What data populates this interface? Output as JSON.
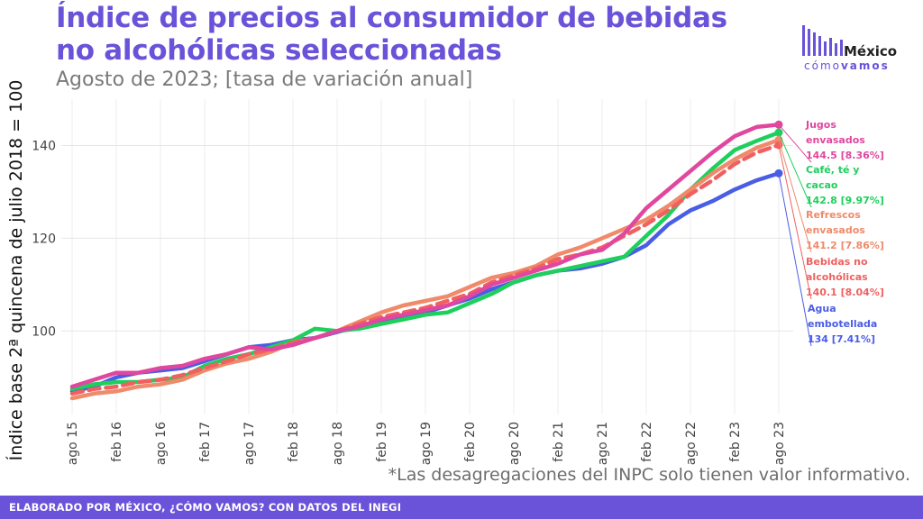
{
  "title": "Índice de precios al consumidor de bebidas no alcohólicas seleccionadas",
  "subtitle": "Agosto de 2023; [tasa de variación anual]",
  "logo": {
    "word": "México",
    "sub_a": "cómo",
    "sub_b": "vamos"
  },
  "note": "*Las desagregaciones del INPC solo tienen valor informativo.",
  "footer": "ELABORADO POR MÉXICO, ¿CÓMO VAMOS? CON DATOS DEL INEGI",
  "colors": {
    "jugos": "#e0479e",
    "cafe": "#1fcf5c",
    "refrescos": "#ef8a6a",
    "bebidas": "#f06060",
    "agua": "#4a5de6"
  },
  "chart_data": {
    "type": "line",
    "ylabel": "Índice base 2ª quincena de julio 2018 = 100",
    "ylim": [
      82,
      150
    ],
    "yticks": [
      100,
      120,
      140
    ],
    "x_months": [
      0,
      98
    ],
    "xticks": [
      {
        "label": "ago 15",
        "m": 0
      },
      {
        "label": "feb 16",
        "m": 6
      },
      {
        "label": "ago 16",
        "m": 12
      },
      {
        "label": "feb 17",
        "m": 18
      },
      {
        "label": "ago 17",
        "m": 24
      },
      {
        "label": "feb 18",
        "m": 30
      },
      {
        "label": "ago 18",
        "m": 36
      },
      {
        "label": "feb 19",
        "m": 42
      },
      {
        "label": "ago 19",
        "m": 48
      },
      {
        "label": "feb 20",
        "m": 54
      },
      {
        "label": "ago 20",
        "m": 60
      },
      {
        "label": "feb 21",
        "m": 66
      },
      {
        "label": "ago 21",
        "m": 72
      },
      {
        "label": "feb 22",
        "m": 78
      },
      {
        "label": "ago 22",
        "m": 84
      },
      {
        "label": "feb 23",
        "m": 90
      },
      {
        "label": "ago 23",
        "m": 96
      }
    ],
    "series": [
      {
        "key": "agua",
        "name": "Agua embotellada",
        "label_lines": [
          "Agua",
          "embotellada",
          "134 [7.41%]"
        ],
        "dashed": false,
        "points": [
          [
            0,
            87
          ],
          [
            3,
            88
          ],
          [
            6,
            90
          ],
          [
            9,
            91
          ],
          [
            12,
            91.5
          ],
          [
            15,
            92
          ],
          [
            18,
            93.5
          ],
          [
            21,
            95
          ],
          [
            24,
            96.5
          ],
          [
            27,
            97
          ],
          [
            30,
            98
          ],
          [
            33,
            98.5
          ],
          [
            36,
            99.8
          ],
          [
            39,
            101
          ],
          [
            42,
            102
          ],
          [
            45,
            103
          ],
          [
            48,
            104
          ],
          [
            51,
            105.5
          ],
          [
            54,
            107
          ],
          [
            57,
            109
          ],
          [
            60,
            110.5
          ],
          [
            63,
            112
          ],
          [
            66,
            113
          ],
          [
            69,
            113.5
          ],
          [
            72,
            114.5
          ],
          [
            75,
            116
          ],
          [
            78,
            118.5
          ],
          [
            81,
            123
          ],
          [
            84,
            126
          ],
          [
            87,
            128
          ],
          [
            90,
            130.5
          ],
          [
            93,
            132.5
          ],
          [
            96,
            134
          ]
        ]
      },
      {
        "key": "cafe",
        "name": "Café, té y cacao",
        "label_lines": [
          "Café, té y",
          "cacao",
          "142.8 [9.97%]"
        ],
        "dashed": false,
        "points": [
          [
            0,
            87.5
          ],
          [
            3,
            88.5
          ],
          [
            6,
            89
          ],
          [
            9,
            89
          ],
          [
            12,
            89.5
          ],
          [
            15,
            90
          ],
          [
            18,
            92.5
          ],
          [
            21,
            94
          ],
          [
            24,
            95
          ],
          [
            27,
            96.5
          ],
          [
            30,
            98
          ],
          [
            33,
            100.5
          ],
          [
            36,
            100
          ],
          [
            39,
            100.5
          ],
          [
            42,
            101.5
          ],
          [
            45,
            102.5
          ],
          [
            48,
            103.5
          ],
          [
            51,
            104
          ],
          [
            54,
            106
          ],
          [
            57,
            108
          ],
          [
            60,
            110.5
          ],
          [
            63,
            112
          ],
          [
            66,
            113
          ],
          [
            69,
            114
          ],
          [
            72,
            115
          ],
          [
            75,
            116
          ],
          [
            78,
            120.5
          ],
          [
            81,
            125
          ],
          [
            84,
            130.5
          ],
          [
            87,
            135
          ],
          [
            90,
            139
          ],
          [
            93,
            141
          ],
          [
            96,
            142.8
          ]
        ]
      },
      {
        "key": "refrescos",
        "name": "Refrescos envasados",
        "label_lines": [
          "Refrescos",
          "envasados",
          "141.2 [7.86%]"
        ],
        "dashed": false,
        "points": [
          [
            0,
            85.5
          ],
          [
            3,
            86.5
          ],
          [
            6,
            87
          ],
          [
            9,
            88
          ],
          [
            12,
            88.5
          ],
          [
            15,
            89.5
          ],
          [
            18,
            91.5
          ],
          [
            21,
            93
          ],
          [
            24,
            94
          ],
          [
            27,
            95.5
          ],
          [
            30,
            97.5
          ],
          [
            33,
            98.5
          ],
          [
            36,
            100
          ],
          [
            39,
            102
          ],
          [
            42,
            104
          ],
          [
            45,
            105.5
          ],
          [
            48,
            106.5
          ],
          [
            51,
            107.5
          ],
          [
            54,
            109.5
          ],
          [
            57,
            111.5
          ],
          [
            60,
            112.5
          ],
          [
            63,
            114
          ],
          [
            66,
            116.5
          ],
          [
            69,
            118
          ],
          [
            72,
            120
          ],
          [
            75,
            122
          ],
          [
            78,
            124
          ],
          [
            81,
            127
          ],
          [
            84,
            130.5
          ],
          [
            87,
            134
          ],
          [
            90,
            137
          ],
          [
            93,
            139.5
          ],
          [
            96,
            141.2
          ]
        ]
      },
      {
        "key": "bebidas",
        "name": "Bebidas no alcohólicas",
        "label_lines": [
          "Bebidas no",
          "alcohólicas",
          "140.1 [8.04%]"
        ],
        "dashed": true,
        "points": [
          [
            0,
            86.5
          ],
          [
            3,
            87.5
          ],
          [
            6,
            88
          ],
          [
            9,
            89
          ],
          [
            12,
            89.5
          ],
          [
            15,
            90.5
          ],
          [
            18,
            92
          ],
          [
            21,
            93.5
          ],
          [
            24,
            95
          ],
          [
            27,
            96
          ],
          [
            30,
            97.5
          ],
          [
            33,
            98.5
          ],
          [
            36,
            100
          ],
          [
            39,
            101.5
          ],
          [
            42,
            103
          ],
          [
            45,
            104
          ],
          [
            48,
            105
          ],
          [
            51,
            106.5
          ],
          [
            54,
            108
          ],
          [
            57,
            110.5
          ],
          [
            60,
            112
          ],
          [
            63,
            113.5
          ],
          [
            66,
            115.5
          ],
          [
            69,
            116.5
          ],
          [
            72,
            118
          ],
          [
            75,
            120.5
          ],
          [
            78,
            123
          ],
          [
            81,
            126
          ],
          [
            84,
            129.5
          ],
          [
            87,
            132.5
          ],
          [
            90,
            136
          ],
          [
            93,
            138.5
          ],
          [
            96,
            140.1
          ]
        ]
      },
      {
        "key": "jugos",
        "name": "Jugos envasados",
        "label_lines": [
          "Jugos",
          "envasados",
          "144.5 [8.36%]"
        ],
        "dashed": false,
        "points": [
          [
            0,
            88
          ],
          [
            3,
            89.5
          ],
          [
            6,
            91
          ],
          [
            9,
            91
          ],
          [
            12,
            92
          ],
          [
            15,
            92.5
          ],
          [
            18,
            94
          ],
          [
            21,
            95
          ],
          [
            24,
            96.5
          ],
          [
            27,
            96
          ],
          [
            30,
            97
          ],
          [
            33,
            98.5
          ],
          [
            36,
            100
          ],
          [
            39,
            101
          ],
          [
            42,
            102.5
          ],
          [
            45,
            103.5
          ],
          [
            48,
            104.5
          ],
          [
            51,
            105.5
          ],
          [
            54,
            107.5
          ],
          [
            57,
            110
          ],
          [
            60,
            111.5
          ],
          [
            63,
            113
          ],
          [
            66,
            114.5
          ],
          [
            69,
            116.5
          ],
          [
            72,
            117.5
          ],
          [
            75,
            121
          ],
          [
            78,
            126.5
          ],
          [
            81,
            130.5
          ],
          [
            84,
            134.5
          ],
          [
            87,
            138.5
          ],
          [
            90,
            142
          ],
          [
            93,
            144
          ],
          [
            96,
            144.5
          ]
        ]
      }
    ]
  }
}
